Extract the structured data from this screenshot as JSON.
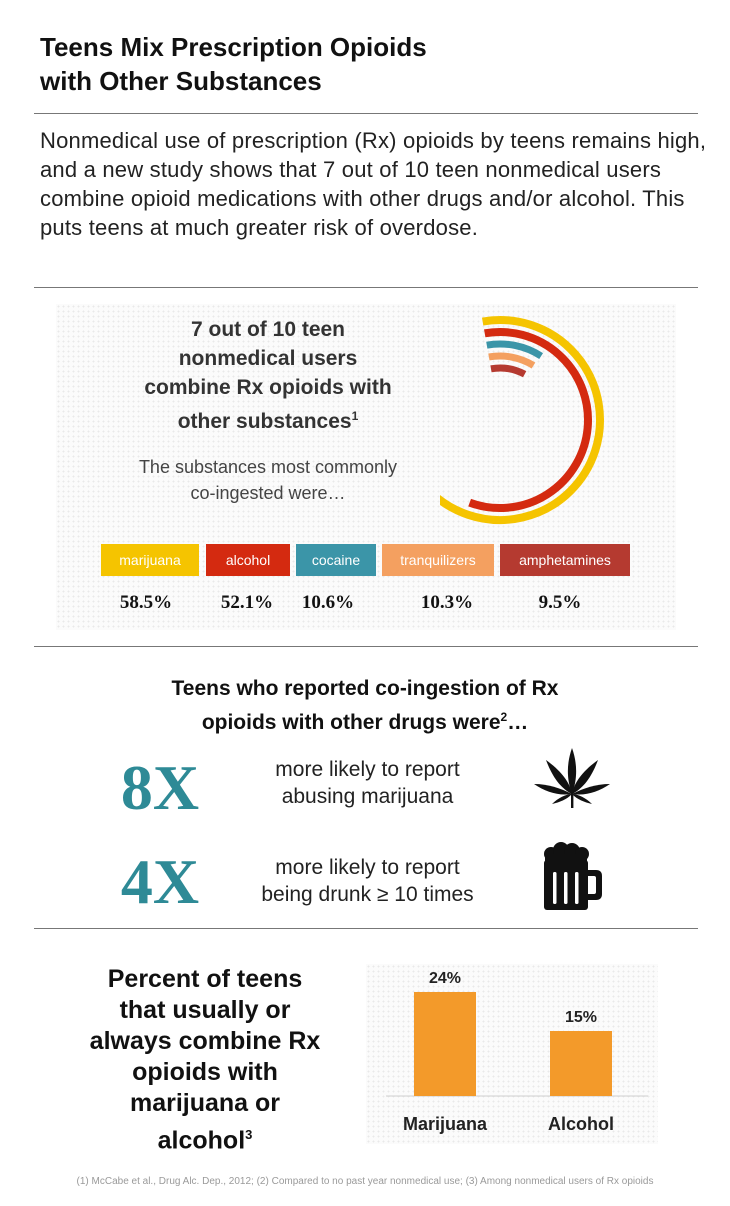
{
  "title_line1": "Teens Mix Prescription Opioids",
  "title_line2": "with Other Substances",
  "intro": "Nonmedical use of prescription (Rx) opioids by teens remains high, and a new study shows that 7 out of 10 teen nonmedical users combine opioid medications with other drugs and/or alcohol. This puts teens at much greater risk of overdose.",
  "stat": {
    "headline_l1": "7 out of 10 teen",
    "headline_l2": "nonmedical users",
    "headline_l3": "combine Rx opioids with",
    "headline_l4": "other substances",
    "headline_ref": "1",
    "sub_l1": "The substances most commonly",
    "sub_l2": "co-ingested were…"
  },
  "colors": {
    "marijuana": "#f5c400",
    "alcohol": "#d42a10",
    "cocaine": "#3b95a8",
    "tranquilizers": "#f4a060",
    "amphetamines": "#b53a30",
    "big_number": "#2e8a96",
    "bar": "#f39a2a"
  },
  "substances": [
    {
      "label": "marijuana",
      "value_label": "58.5%"
    },
    {
      "label": "alcohol",
      "value_label": "52.1%"
    },
    {
      "label": "cocaine",
      "value_label": "10.6%"
    },
    {
      "label": "tranquilizers",
      "value_label": "10.3%"
    },
    {
      "label": "amphetamines",
      "value_label": "9.5%"
    }
  ],
  "section2": {
    "head_l1": "Teens who reported co-ingestion of Rx",
    "head_l2": "opioids with other drugs were",
    "head_ref": "2",
    "head_tail": "…",
    "rows": [
      {
        "big": "8X",
        "line1": "more likely to report",
        "line2": "abusing marijuana",
        "icon": "cannabis-leaf-icon"
      },
      {
        "big": "4X",
        "line1": "more likely to report",
        "line2": "being drunk  ≥ 10 times",
        "icon": "beer-mug-icon"
      }
    ]
  },
  "section3": {
    "head_l1": "Percent of teens",
    "head_l2": "that usually or",
    "head_l3": "always combine Rx",
    "head_l4": "opioids with",
    "head_l5": "marijuana or",
    "head_l6": "alcohol",
    "head_ref": "3"
  },
  "footnote": "(1) McCabe et al., Drug Alc. Dep., 2012; (2) Compared to no past year nonmedical use; (3) Among nonmedical users of Rx opioids",
  "chart_data": [
    {
      "type": "bar",
      "categories": [
        "marijuana",
        "alcohol",
        "cocaine",
        "tranquilizers",
        "amphetamines"
      ],
      "values": [
        58.5,
        52.1,
        10.6,
        10.3,
        9.5
      ],
      "value_labels": [
        "58.5%",
        "52.1%",
        "10.6%",
        "10.3%",
        "9.5%"
      ],
      "style": "concentric-arcs"
    },
    {
      "type": "bar",
      "categories": [
        "Marijuana",
        "Alcohol"
      ],
      "values": [
        24,
        15
      ],
      "value_labels": [
        "24%",
        "15%"
      ],
      "ylim": [
        0,
        30
      ]
    }
  ]
}
